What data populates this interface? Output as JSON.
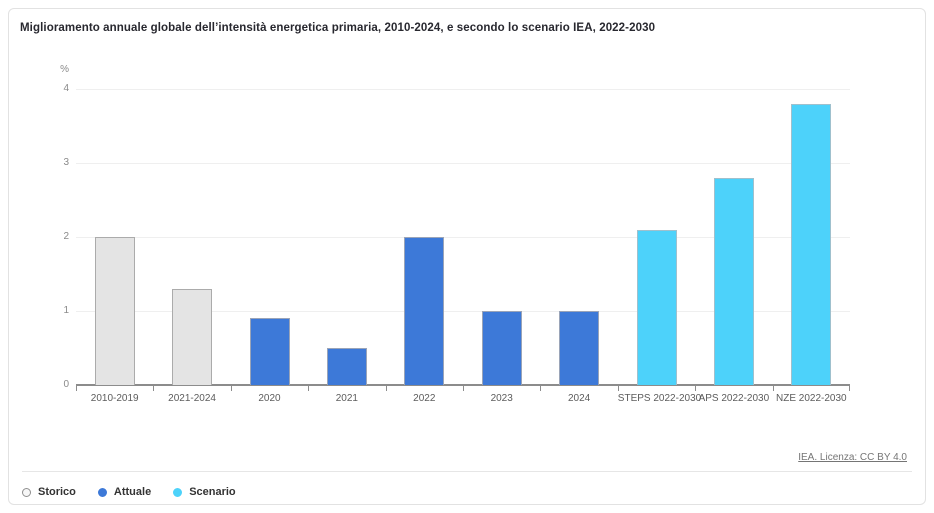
{
  "card": {
    "title": "Miglioramento annuale globale dell’intensità energetica primaria, 2010-2024, e secondo lo scenario IEA, 2022-2030",
    "source_link": "IEA. Licenza: CC BY 4.0"
  },
  "chart_data": {
    "type": "bar",
    "title": "Miglioramento annuale globale dell’intensità energetica primaria, 2010-2024, e secondo lo scenario IEA, 2022-2030",
    "unit_label": "%",
    "xlabel": "",
    "ylabel": "%",
    "ylim": [
      0,
      4
    ],
    "yticks": [
      0,
      1,
      2,
      3,
      4
    ],
    "grid": true,
    "legend_position": "bottom",
    "categories": [
      "2010-2019",
      "2021-2024",
      "2020",
      "2021",
      "2022",
      "2023",
      "2024",
      "STEPS 2022-2030",
      "APS 2022-2030",
      "NZE 2022-2030"
    ],
    "values": [
      2.0,
      1.3,
      0.9,
      0.5,
      2.0,
      1.0,
      1.0,
      2.1,
      2.8,
      3.8
    ],
    "series_index": [
      0,
      0,
      1,
      1,
      1,
      1,
      1,
      2,
      2,
      2
    ],
    "legend": [
      {
        "label": "Storico",
        "bar_fill": "#e4e4e4",
        "bar_border": "#ababab",
        "swatch_fill": "#f7f7f7",
        "swatch_border": "#8f8f8f"
      },
      {
        "label": "Attuale",
        "bar_fill": "#3d79d8",
        "bar_border": "#9aa4b8",
        "swatch_fill": "#3d79d8",
        "swatch_border": "#3d79d8"
      },
      {
        "label": "Scenario",
        "bar_fill": "#4dd2fa",
        "bar_border": "#9fc0cd",
        "swatch_fill": "#4dd2fa",
        "swatch_border": "#4dd2fa"
      }
    ]
  }
}
